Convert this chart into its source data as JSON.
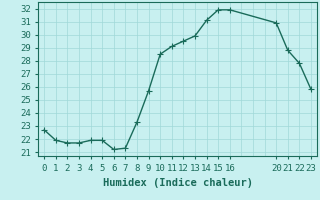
{
  "x": [
    0,
    1,
    2,
    3,
    4,
    5,
    6,
    7,
    8,
    9,
    10,
    11,
    12,
    13,
    14,
    15,
    16,
    20,
    21,
    22,
    23
  ],
  "y": [
    22.7,
    21.9,
    21.7,
    21.7,
    21.9,
    21.9,
    21.2,
    21.3,
    23.3,
    25.7,
    28.5,
    29.1,
    29.5,
    29.9,
    31.1,
    31.9,
    31.9,
    30.9,
    28.8,
    27.8,
    25.8
  ],
  "line_color": "#1a6b5a",
  "marker_color": "#1a6b5a",
  "bg_color": "#c8f0f0",
  "grid_color": "#a0d8d8",
  "xlabel": "Humidex (Indice chaleur)",
  "xlim": [
    -0.5,
    23.5
  ],
  "ylim": [
    20.7,
    32.5
  ],
  "yticks": [
    21,
    22,
    23,
    24,
    25,
    26,
    27,
    28,
    29,
    30,
    31,
    32
  ],
  "xticks": [
    0,
    1,
    2,
    3,
    4,
    5,
    6,
    7,
    8,
    9,
    10,
    11,
    12,
    13,
    14,
    15,
    16,
    20,
    21,
    22,
    23
  ],
  "xlabel_fontsize": 7.5,
  "tick_fontsize": 6.5,
  "line_width": 1.0,
  "marker_size": 4
}
